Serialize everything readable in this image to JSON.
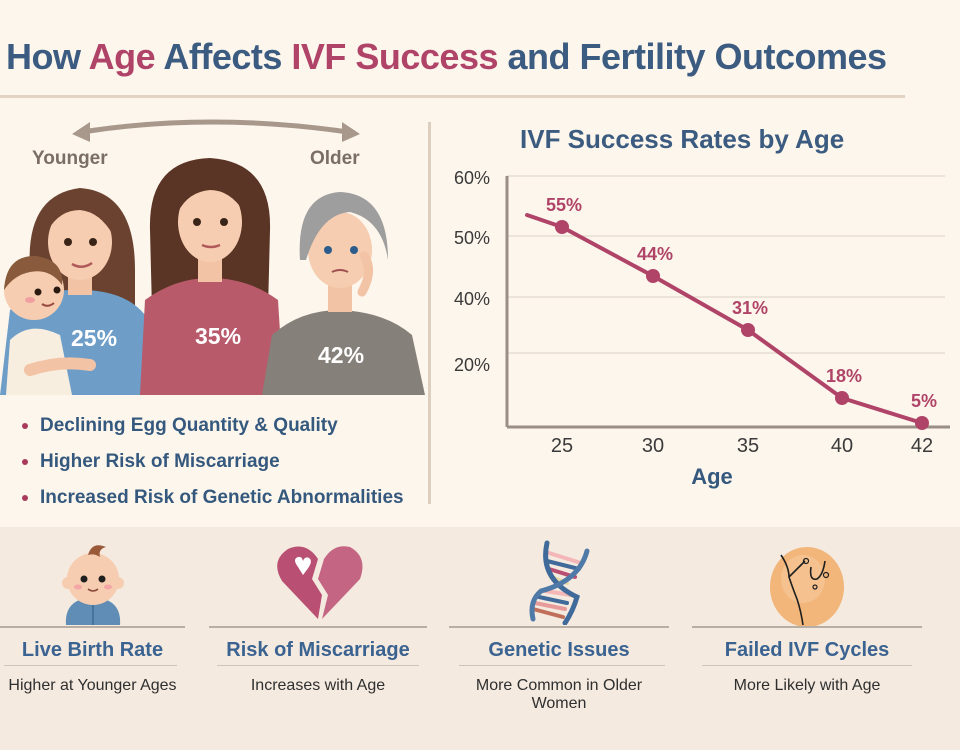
{
  "title": {
    "parts": [
      {
        "text": "How ",
        "accent": false
      },
      {
        "text": "Age",
        "accent": true
      },
      {
        "text": " Affects ",
        "accent": false
      },
      {
        "text": "IVF Success",
        "accent": true
      },
      {
        "text": " and Fertility Outcomes",
        "accent": false
      }
    ]
  },
  "colors": {
    "primary": "#3b5b80",
    "accent": "#b04468",
    "background": "#fdf6ec",
    "band": "#f4eadf"
  },
  "illustration": {
    "younger_label": "Younger",
    "older_label": "Older",
    "ages": [
      "25%",
      "35%",
      "42%"
    ]
  },
  "bullets": [
    "Declining Egg Quantity & Quality",
    "Higher Risk of Miscarriage",
    "Increased Risk of Genetic Abnormalities"
  ],
  "chart_data": {
    "type": "line",
    "title": "IVF Success Rates by Age",
    "xlabel": "Age",
    "ylabel": "",
    "categories": [
      "25",
      "30",
      "35",
      "40",
      "42"
    ],
    "x": [
      25,
      30,
      35,
      40,
      42
    ],
    "series": [
      {
        "name": "IVF Success Rate",
        "values": [
          55,
          44,
          31,
          18,
          5
        ],
        "labels": [
          "55%",
          "44%",
          "31%",
          "18%",
          "5%"
        ],
        "color": "#b04468"
      }
    ],
    "y_ticks": [
      "60%",
      "50%",
      "40%",
      "20%"
    ],
    "ylim": [
      0,
      60
    ],
    "grid": true,
    "legend": "none"
  },
  "cards": [
    {
      "icon": "baby-icon",
      "name": "Live Birth Rate",
      "desc": "Higher at Younger Ages"
    },
    {
      "icon": "broken-heart-icon",
      "name": "Risk of Miscarriage",
      "desc": "Increases with Age"
    },
    {
      "icon": "dna-icon",
      "name": "Genetic Issues",
      "desc": "More Common in Older Women"
    },
    {
      "icon": "cracked-egg-icon",
      "name": "Failed IVF Cycles",
      "desc": "More Likely with Age"
    }
  ]
}
